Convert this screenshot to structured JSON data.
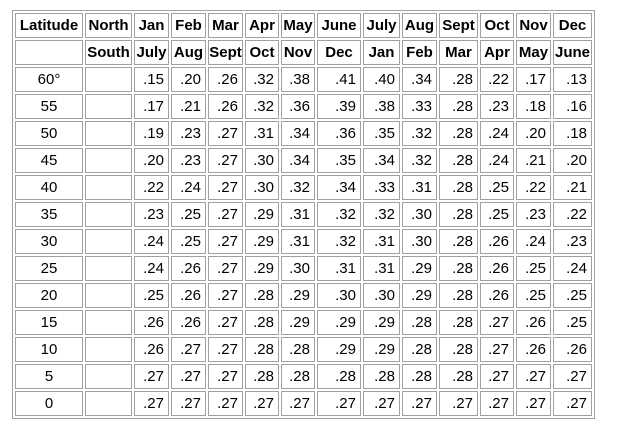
{
  "table": {
    "header_row_1": [
      "Latitude",
      "North",
      "Jan",
      "Feb",
      "Mar",
      "Apr",
      "May",
      "June",
      "July",
      "Aug",
      "Sept",
      "Oct",
      "Nov",
      "Dec"
    ],
    "header_row_2": [
      "",
      "South",
      "July",
      "Aug",
      "Sept",
      "Oct",
      "Nov",
      "Dec",
      "Jan",
      "Feb",
      "Mar",
      "Apr",
      "May",
      "June"
    ],
    "rows": [
      {
        "latitude": "60°",
        "values": [
          ".15",
          ".20",
          ".26",
          ".32",
          ".38",
          ".41",
          ".40",
          ".34",
          ".28",
          ".22",
          ".17",
          ".13"
        ]
      },
      {
        "latitude": "55",
        "values": [
          ".17",
          ".21",
          ".26",
          ".32",
          ".36",
          ".39",
          ".38",
          ".33",
          ".28",
          ".23",
          ".18",
          ".16"
        ]
      },
      {
        "latitude": "50",
        "values": [
          ".19",
          ".23",
          ".27",
          ".31",
          ".34",
          ".36",
          ".35",
          ".32",
          ".28",
          ".24",
          ".20",
          ".18"
        ]
      },
      {
        "latitude": "45",
        "values": [
          ".20",
          ".23",
          ".27",
          ".30",
          ".34",
          ".35",
          ".34",
          ".32",
          ".28",
          ".24",
          ".21",
          ".20"
        ]
      },
      {
        "latitude": "40",
        "values": [
          ".22",
          ".24",
          ".27",
          ".30",
          ".32",
          ".34",
          ".33",
          ".31",
          ".28",
          ".25",
          ".22",
          ".21"
        ]
      },
      {
        "latitude": "35",
        "values": [
          ".23",
          ".25",
          ".27",
          ".29",
          ".31",
          ".32",
          ".32",
          ".30",
          ".28",
          ".25",
          ".23",
          ".22"
        ]
      },
      {
        "latitude": "30",
        "values": [
          ".24",
          ".25",
          ".27",
          ".29",
          ".31",
          ".32",
          ".31",
          ".30",
          ".28",
          ".26",
          ".24",
          ".23"
        ]
      },
      {
        "latitude": "25",
        "values": [
          ".24",
          ".26",
          ".27",
          ".29",
          ".30",
          ".31",
          ".31",
          ".29",
          ".28",
          ".26",
          ".25",
          ".24"
        ]
      },
      {
        "latitude": "20",
        "values": [
          ".25",
          ".26",
          ".27",
          ".28",
          ".29",
          ".30",
          ".30",
          ".29",
          ".28",
          ".26",
          ".25",
          ".25"
        ]
      },
      {
        "latitude": "15",
        "values": [
          ".26",
          ".26",
          ".27",
          ".28",
          ".29",
          ".29",
          ".29",
          ".28",
          ".28",
          ".27",
          ".26",
          ".25"
        ]
      },
      {
        "latitude": "10",
        "values": [
          ".26",
          ".27",
          ".27",
          ".28",
          ".28",
          ".29",
          ".29",
          ".28",
          ".28",
          ".27",
          ".26",
          ".26"
        ]
      },
      {
        "latitude": "5",
        "values": [
          ".27",
          ".27",
          ".27",
          ".28",
          ".28",
          ".28",
          ".28",
          ".28",
          ".28",
          ".27",
          ".27",
          ".27"
        ]
      },
      {
        "latitude": "0",
        "values": [
          ".27",
          ".27",
          ".27",
          ".27",
          ".27",
          ".27",
          ".27",
          ".27",
          ".27",
          ".27",
          ".27",
          ".27"
        ]
      }
    ]
  }
}
